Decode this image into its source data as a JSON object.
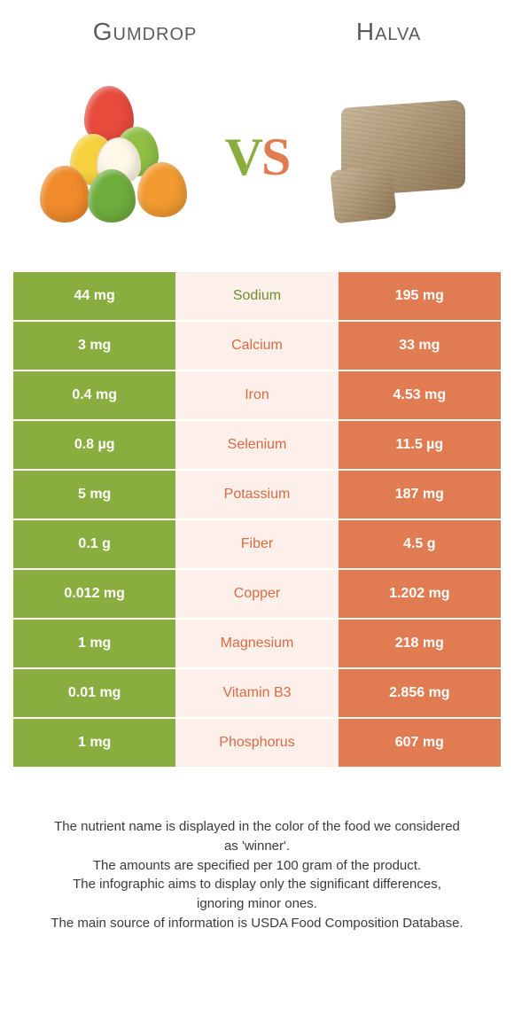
{
  "titles": {
    "left": "Gumdrop",
    "right": "Halva"
  },
  "vs": {
    "v": "V",
    "s": "S"
  },
  "colors": {
    "green_bg": "#8aad3f",
    "green_fg": "#ffffff",
    "orange_bg": "#e07b52",
    "orange_fg": "#ffffff",
    "mid_bg": "#fdf0ea",
    "mid_fg_orange": "#d96a42",
    "mid_fg_green": "#6e8e2e"
  },
  "rows": [
    {
      "left": "44 mg",
      "label": "Sodium",
      "right": "195 mg",
      "winner": "left"
    },
    {
      "left": "3 mg",
      "label": "Calcium",
      "right": "33 mg",
      "winner": "right"
    },
    {
      "left": "0.4 mg",
      "label": "Iron",
      "right": "4.53 mg",
      "winner": "right"
    },
    {
      "left": "0.8 µg",
      "label": "Selenium",
      "right": "11.5 µg",
      "winner": "right"
    },
    {
      "left": "5 mg",
      "label": "Potassium",
      "right": "187 mg",
      "winner": "right"
    },
    {
      "left": "0.1 g",
      "label": "Fiber",
      "right": "4.5 g",
      "winner": "right"
    },
    {
      "left": "0.012 mg",
      "label": "Copper",
      "right": "1.202 mg",
      "winner": "right"
    },
    {
      "left": "1 mg",
      "label": "Magnesium",
      "right": "218 mg",
      "winner": "right"
    },
    {
      "left": "0.01 mg",
      "label": "Vitamin B3",
      "right": "2.856 mg",
      "winner": "right"
    },
    {
      "left": "1 mg",
      "label": "Phosphorus",
      "right": "607 mg",
      "winner": "right"
    }
  ],
  "footer": [
    "The nutrient name is displayed in the color of the food we considered as 'winner'.",
    "The amounts are specified per 100 gram of the product.",
    "The infographic aims to display only the significant differences, ignoring minor ones.",
    "The main source of information is USDA Food Composition Database."
  ]
}
